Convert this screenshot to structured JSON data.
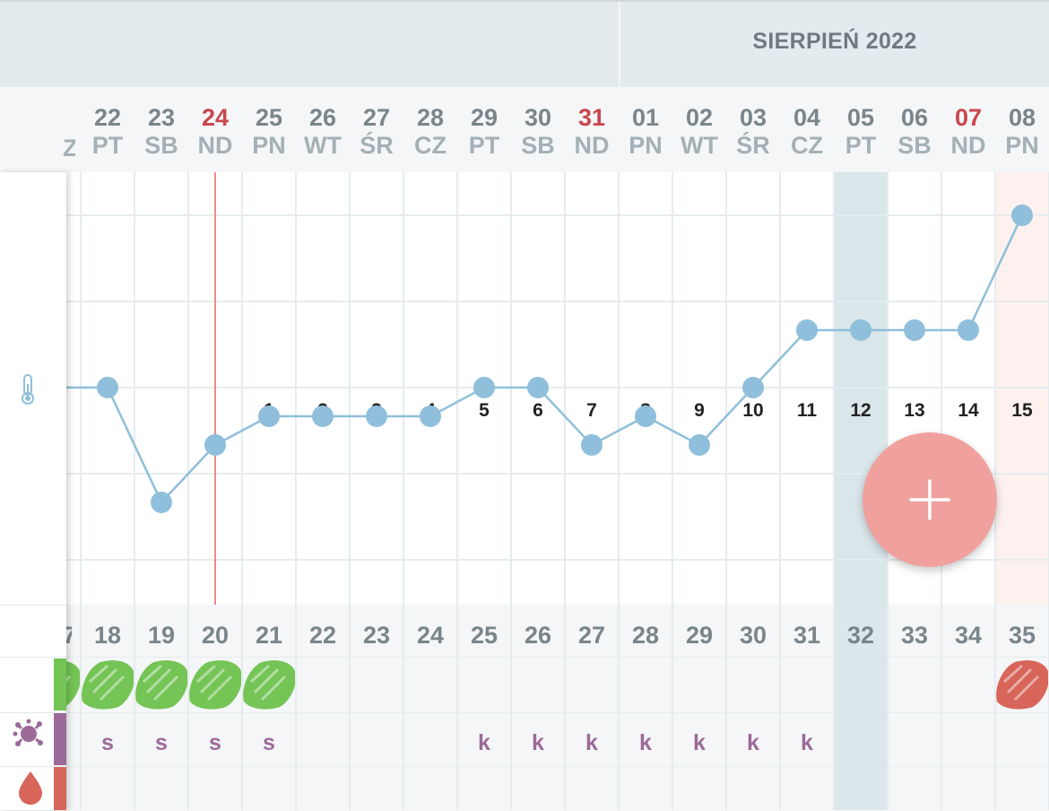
{
  "header": {
    "month_label": "SIERPIEŃ 2022"
  },
  "prev_truncated": {
    "weekday": "Z",
    "cycle_day": "7"
  },
  "days": [
    {
      "date": "22",
      "weekday": "PT",
      "sunday": false,
      "cycle_day": "18",
      "label": "",
      "temp": 0.0,
      "bleed": "green",
      "mucus": "s"
    },
    {
      "date": "23",
      "weekday": "SB",
      "sunday": false,
      "cycle_day": "19",
      "label": "",
      "temp": -2.0,
      "bleed": "green",
      "mucus": "s"
    },
    {
      "date": "24",
      "weekday": "ND",
      "sunday": true,
      "cycle_day": "20",
      "label": "",
      "temp": -1.0,
      "bleed": "green",
      "mucus": "s"
    },
    {
      "date": "25",
      "weekday": "PN",
      "sunday": false,
      "cycle_day": "21",
      "label": "1",
      "temp": -0.5,
      "bleed": "green",
      "mucus": "s"
    },
    {
      "date": "26",
      "weekday": "WT",
      "sunday": false,
      "cycle_day": "22",
      "label": "2",
      "temp": -0.5,
      "bleed": "",
      "mucus": ""
    },
    {
      "date": "27",
      "weekday": "ŚR",
      "sunday": false,
      "cycle_day": "23",
      "label": "3",
      "temp": -0.5,
      "bleed": "",
      "mucus": ""
    },
    {
      "date": "28",
      "weekday": "CZ",
      "sunday": false,
      "cycle_day": "24",
      "label": "4",
      "temp": -0.5,
      "bleed": "",
      "mucus": ""
    },
    {
      "date": "29",
      "weekday": "PT",
      "sunday": false,
      "cycle_day": "25",
      "label": "5",
      "temp": 0.0,
      "bleed": "",
      "mucus": "k"
    },
    {
      "date": "30",
      "weekday": "SB",
      "sunday": false,
      "cycle_day": "26",
      "label": "6",
      "temp": 0.0,
      "bleed": "",
      "mucus": "k"
    },
    {
      "date": "31",
      "weekday": "ND",
      "sunday": true,
      "cycle_day": "27",
      "label": "7",
      "temp": -1.0,
      "bleed": "",
      "mucus": "k"
    },
    {
      "date": "01",
      "weekday": "PN",
      "sunday": false,
      "cycle_day": "28",
      "label": "8",
      "temp": -0.5,
      "bleed": "",
      "mucus": "k"
    },
    {
      "date": "02",
      "weekday": "WT",
      "sunday": false,
      "cycle_day": "29",
      "label": "9",
      "temp": -1.0,
      "bleed": "",
      "mucus": "k"
    },
    {
      "date": "03",
      "weekday": "ŚR",
      "sunday": false,
      "cycle_day": "30",
      "label": "10",
      "temp": 0.0,
      "bleed": "",
      "mucus": "k"
    },
    {
      "date": "04",
      "weekday": "CZ",
      "sunday": false,
      "cycle_day": "31",
      "label": "11",
      "temp": 1.0,
      "bleed": "",
      "mucus": "k"
    },
    {
      "date": "05",
      "weekday": "PT",
      "sunday": false,
      "cycle_day": "32",
      "label": "12",
      "temp": 1.0,
      "bleed": "",
      "mucus": "",
      "highlight": true
    },
    {
      "date": "06",
      "weekday": "SB",
      "sunday": false,
      "cycle_day": "33",
      "label": "13",
      "temp": 1.0,
      "bleed": "",
      "mucus": ""
    },
    {
      "date": "07",
      "weekday": "ND",
      "sunday": true,
      "cycle_day": "34",
      "label": "14",
      "temp": 1.0,
      "bleed": "",
      "mucus": ""
    },
    {
      "date": "08",
      "weekday": "PN",
      "sunday": false,
      "cycle_day": "35",
      "label": "15",
      "temp": 3.0,
      "bleed": "red",
      "mucus": ""
    }
  ],
  "chart_data": {
    "type": "line",
    "x": [
      "22",
      "23",
      "24",
      "25",
      "26",
      "27",
      "28",
      "29",
      "30",
      "31",
      "01",
      "02",
      "03",
      "04",
      "05",
      "06",
      "07",
      "08"
    ],
    "series": [
      {
        "values": [
          0.0,
          -2.0,
          -1.0,
          -0.5,
          -0.5,
          -0.5,
          -0.5,
          0.0,
          0.0,
          -1.0,
          -0.5,
          -1.0,
          0.0,
          1.0,
          1.0,
          1.0,
          1.0,
          3.0
        ]
      }
    ],
    "grid": true
  },
  "colors": {
    "line": "#8fbfda",
    "today_line": "#e98d86",
    "sunday": "#c9464d",
    "green_mark": "#74c456",
    "red_mark": "#d8655a",
    "mucus_text": "#9b6a98",
    "highlight_col": "#d9e6ea",
    "fab": "#f0a19e"
  },
  "icons": {
    "temperature": "thermometer-icon",
    "mucus": "splat-icon",
    "blood": "drop-icon",
    "add": "plus-icon"
  }
}
